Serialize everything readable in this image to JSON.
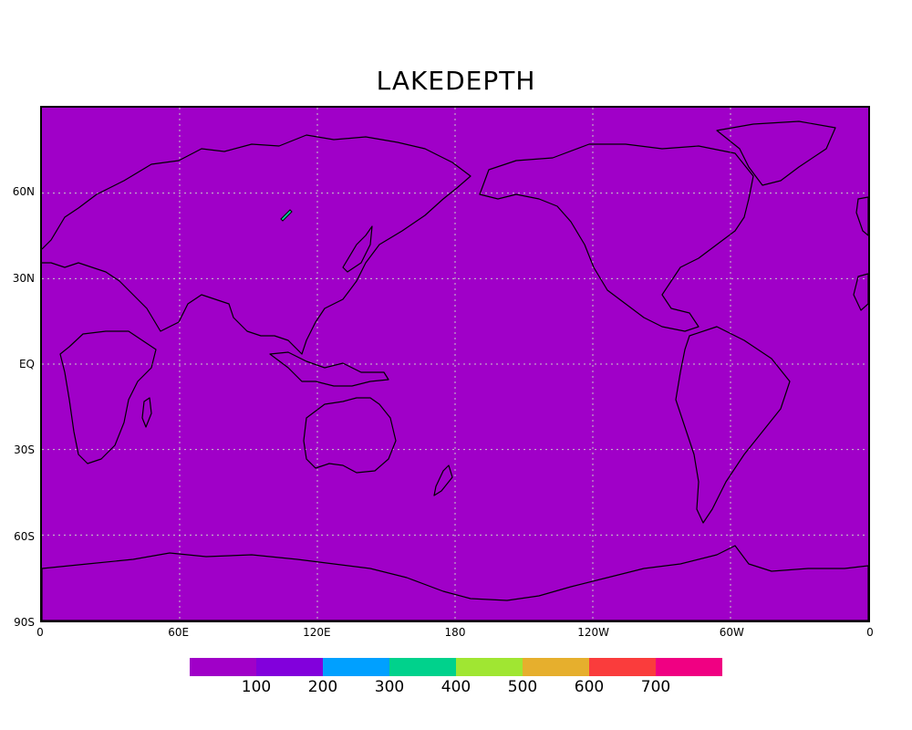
{
  "title": "LAKEDEPTH",
  "map": {
    "projection": "cylindrical equidistant",
    "lon_range": [
      0,
      360
    ],
    "lat_range": [
      -90,
      90
    ],
    "fill_color": "#a000c8",
    "grid": "dotted",
    "lat_ticks": [
      {
        "label": "60N",
        "lat": 60
      },
      {
        "label": "30N",
        "lat": 30
      },
      {
        "label": "EQ",
        "lat": 0
      },
      {
        "label": "30S",
        "lat": -30
      },
      {
        "label": "60S",
        "lat": -60
      },
      {
        "label": "90S",
        "lat": -90
      }
    ],
    "lon_ticks": [
      {
        "label": "0",
        "lon": 0
      },
      {
        "label": "60E",
        "lon": 60
      },
      {
        "label": "120E",
        "lon": 120
      },
      {
        "label": "180",
        "lon": 180
      },
      {
        "label": "120W",
        "lon": 240
      },
      {
        "label": "60W",
        "lon": 300
      },
      {
        "label": "0",
        "lon": 360
      }
    ]
  },
  "colorbar": {
    "colors": [
      "#a000c8",
      "#8200dc",
      "#00a0ff",
      "#00d28c",
      "#a0e632",
      "#e6af2d",
      "#fa3c3c",
      "#f00082"
    ],
    "labels": [
      "100",
      "200",
      "300",
      "400",
      "500",
      "600",
      "700"
    ]
  }
}
